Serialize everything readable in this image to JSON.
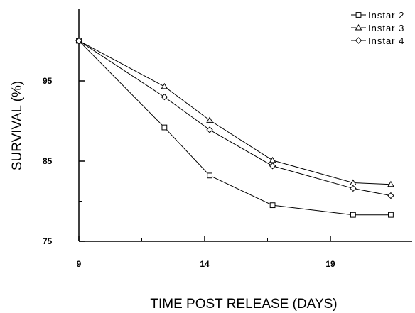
{
  "chart_data": {
    "type": "line",
    "title": "",
    "xlabel": "TIME POST RELEASE (DAYS)",
    "ylabel": "SURVIVAL (%)",
    "xlim": [
      9,
      21.5
    ],
    "ylim": [
      75,
      100
    ],
    "x_ticks": [
      9,
      14,
      19
    ],
    "x_tick_labels": [
      "9",
      "14",
      "19"
    ],
    "y_ticks": [
      75,
      85,
      95
    ],
    "y_tick_labels": [
      "75",
      "85",
      "95"
    ],
    "grid": false,
    "legend_position": "top-right",
    "series": [
      {
        "name": "Instar 2",
        "marker": "square",
        "x": [
          9,
          12.4,
          14.2,
          16.7,
          19.9,
          21.4
        ],
        "y": [
          100,
          89.2,
          83.2,
          79.5,
          78.3,
          78.3
        ]
      },
      {
        "name": "Instar 3",
        "marker": "triangle",
        "x": [
          9,
          12.4,
          14.2,
          16.7,
          19.9,
          21.4
        ],
        "y": [
          100,
          94.3,
          90.1,
          85.1,
          82.3,
          82.1
        ]
      },
      {
        "name": "Instar 4",
        "marker": "diamond",
        "x": [
          9,
          12.4,
          14.2,
          16.7,
          19.9,
          21.4
        ],
        "y": [
          100,
          93.0,
          88.9,
          84.4,
          81.6,
          80.7
        ]
      }
    ]
  }
}
